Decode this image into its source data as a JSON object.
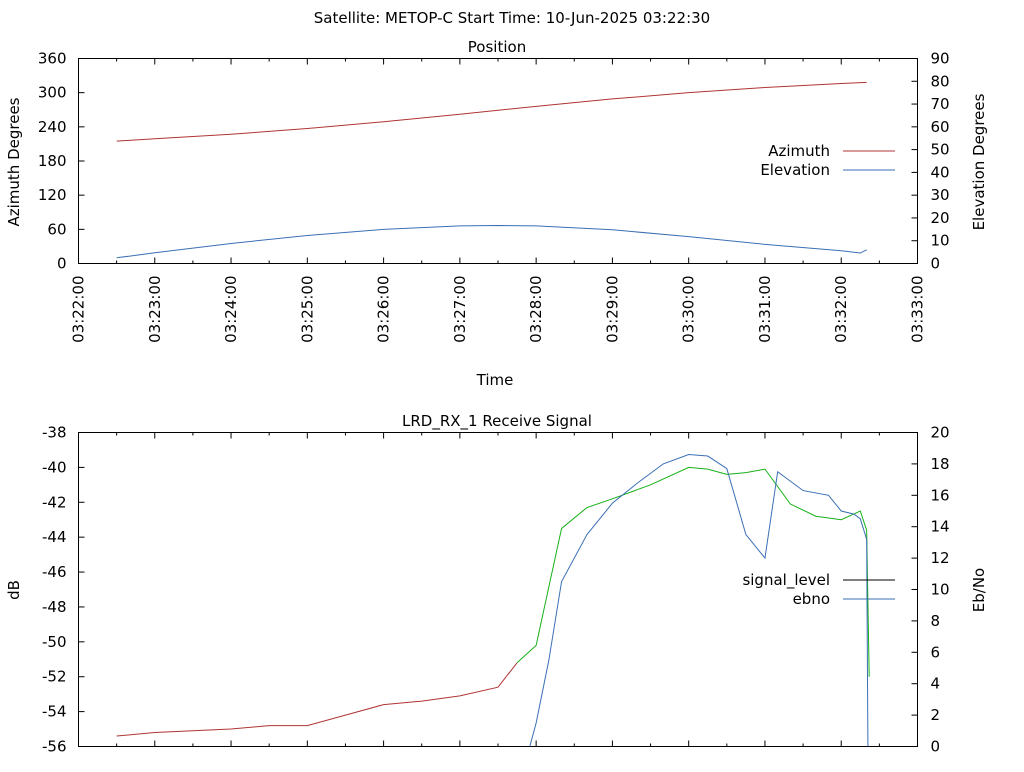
{
  "header": {
    "title": "Satellite: METOP-C    Start Time: 10-Jun-2025 03:22:30"
  },
  "colors": {
    "azimuth": "#b03434",
    "elevation": "#3a6fb5",
    "signal_level_legend": "#000000",
    "signal_noise": "#b03434",
    "signal_locked": "#17b017",
    "ebno": "#3a6fb5",
    "axis": "#000000"
  },
  "chart_data": [
    {
      "type": "line",
      "title": "Position",
      "xlabel": "Time",
      "ylabel": "Azimuth Degrees",
      "y2label": "Elevation Degrees",
      "x_tick_labels": [
        "03:22:00",
        "03:23:00",
        "03:24:00",
        "03:25:00",
        "03:26:00",
        "03:27:00",
        "03:28:00",
        "03:29:00",
        "03:30:00",
        "03:31:00",
        "03:32:00",
        "03:33:00"
      ],
      "xlim": [
        "03:22:00",
        "03:33:00"
      ],
      "ylim": [
        0,
        360
      ],
      "y_ticks": [
        0,
        60,
        120,
        180,
        240,
        300,
        360
      ],
      "y2lim": [
        0,
        90
      ],
      "y2_ticks": [
        0,
        10,
        20,
        30,
        40,
        50,
        60,
        70,
        80,
        90
      ],
      "legend_position": "right",
      "grid": false,
      "series": [
        {
          "name": "Azimuth",
          "axis": "y",
          "x": [
            "03:22:30",
            "03:23:00",
            "03:24:00",
            "03:25:00",
            "03:26:00",
            "03:27:00",
            "03:28:00",
            "03:29:00",
            "03:30:00",
            "03:31:00",
            "03:32:00",
            "03:32:20"
          ],
          "y": [
            215,
            219,
            227,
            237,
            249,
            262,
            276,
            289,
            300,
            309,
            316,
            318
          ]
        },
        {
          "name": "Elevation",
          "axis": "y2",
          "x": [
            "03:22:30",
            "03:23:00",
            "03:24:00",
            "03:25:00",
            "03:26:00",
            "03:27:00",
            "03:27:30",
            "03:28:00",
            "03:29:00",
            "03:30:00",
            "03:31:00",
            "03:32:00",
            "03:32:15",
            "03:32:20"
          ],
          "y": [
            2.5,
            4.7,
            8.8,
            12.3,
            15.0,
            16.5,
            16.7,
            16.5,
            14.8,
            11.8,
            8.4,
            5.6,
            4.6,
            6.0
          ]
        }
      ]
    },
    {
      "type": "line",
      "title": "LRD_RX_1 Receive Signal",
      "xlabel": "",
      "ylabel": "dB",
      "y2label": "Eb/No",
      "xlim": [
        "03:22:00",
        "03:33:00"
      ],
      "ylim": [
        -56,
        -38
      ],
      "y_ticks": [
        -56,
        -54,
        -52,
        -50,
        -48,
        -46,
        -44,
        -42,
        -40,
        -38
      ],
      "y2lim": [
        0,
        20
      ],
      "y2_ticks": [
        0,
        2,
        4,
        6,
        8,
        10,
        12,
        14,
        16,
        18,
        20
      ],
      "legend_position": "right",
      "grid": false,
      "legend": [
        "signal_level",
        "ebno"
      ],
      "series": [
        {
          "name": "signal_level",
          "axis": "y",
          "x": [
            "03:22:30",
            "03:23:00",
            "03:23:30",
            "03:24:00",
            "03:24:30",
            "03:25:00",
            "03:25:30",
            "03:26:00",
            "03:26:30",
            "03:27:00",
            "03:27:30",
            "03:27:45",
            "03:28:00",
            "03:28:20",
            "03:28:40",
            "03:29:00",
            "03:29:30",
            "03:30:00",
            "03:30:15",
            "03:30:30",
            "03:30:45",
            "03:31:00",
            "03:31:20",
            "03:31:40",
            "03:32:00",
            "03:32:15",
            "03:32:20",
            "03:32:22"
          ],
          "y": [
            -55.4,
            -55.2,
            -55.1,
            -55.0,
            -54.8,
            -54.8,
            -54.2,
            -53.6,
            -53.4,
            -53.1,
            -52.6,
            -51.2,
            -50.2,
            -43.5,
            -42.3,
            -41.8,
            -41.0,
            -40.0,
            -40.1,
            -40.4,
            -40.3,
            -40.1,
            -42.1,
            -42.8,
            -43.0,
            -42.5,
            -43.6,
            -52.0
          ]
        },
        {
          "name": "ebno",
          "axis": "y2",
          "x": [
            "03:27:55",
            "03:28:00",
            "03:28:10",
            "03:28:20",
            "03:28:40",
            "03:29:00",
            "03:29:20",
            "03:29:40",
            "03:30:00",
            "03:30:15",
            "03:30:30",
            "03:30:45",
            "03:31:00",
            "03:31:10",
            "03:31:30",
            "03:31:50",
            "03:32:00",
            "03:32:10",
            "03:32:15",
            "03:32:20",
            "03:32:21"
          ],
          "y": [
            0.0,
            1.5,
            5.5,
            10.5,
            13.5,
            15.5,
            16.8,
            18.0,
            18.6,
            18.5,
            17.7,
            13.5,
            12.0,
            17.5,
            16.3,
            16.0,
            15.0,
            14.8,
            14.5,
            13.2,
            0.0
          ]
        }
      ]
    }
  ]
}
